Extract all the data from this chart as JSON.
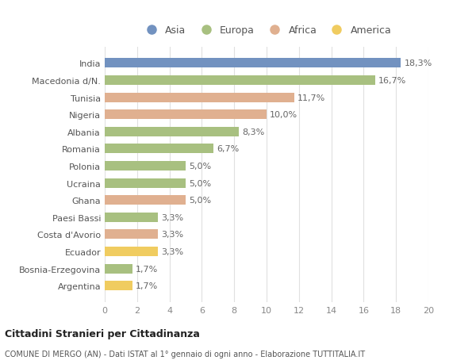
{
  "categories": [
    "Argentina",
    "Bosnia-Erzegovina",
    "Ecuador",
    "Costa d'Avorio",
    "Paesi Bassi",
    "Ghana",
    "Ucraina",
    "Polonia",
    "Romania",
    "Albania",
    "Nigeria",
    "Tunisia",
    "Macedonia d/N.",
    "India"
  ],
  "values": [
    1.7,
    1.7,
    3.3,
    3.3,
    3.3,
    5.0,
    5.0,
    5.0,
    6.7,
    8.3,
    10.0,
    11.7,
    16.7,
    18.3
  ],
  "labels": [
    "1,7%",
    "1,7%",
    "3,3%",
    "3,3%",
    "3,3%",
    "5,0%",
    "5,0%",
    "5,0%",
    "6,7%",
    "8,3%",
    "10,0%",
    "11,7%",
    "16,7%",
    "18,3%"
  ],
  "continents": [
    "America",
    "Europa",
    "America",
    "Africa",
    "Europa",
    "Africa",
    "Europa",
    "Europa",
    "Europa",
    "Europa",
    "Africa",
    "Africa",
    "Europa",
    "Asia"
  ],
  "colors": {
    "Asia": "#7292c0",
    "Europa": "#a8c080",
    "Africa": "#e0b090",
    "America": "#f0cc60"
  },
  "legend_order": [
    "Asia",
    "Europa",
    "Africa",
    "America"
  ],
  "xlim": [
    0,
    20
  ],
  "background_color": "#ffffff",
  "grid_color": "#e0e0e0",
  "bar_height": 0.55,
  "title_bold": "Cittadini Stranieri per Cittadinanza",
  "subtitle": "COMUNE DI MERGO (AN) - Dati ISTAT al 1° gennaio di ogni anno - Elaborazione TUTTITALIA.IT",
  "label_fontsize": 8,
  "tick_fontsize": 8,
  "legend_fontsize": 9,
  "ylabel_color": "#666666",
  "xlabel_color": "#666666"
}
